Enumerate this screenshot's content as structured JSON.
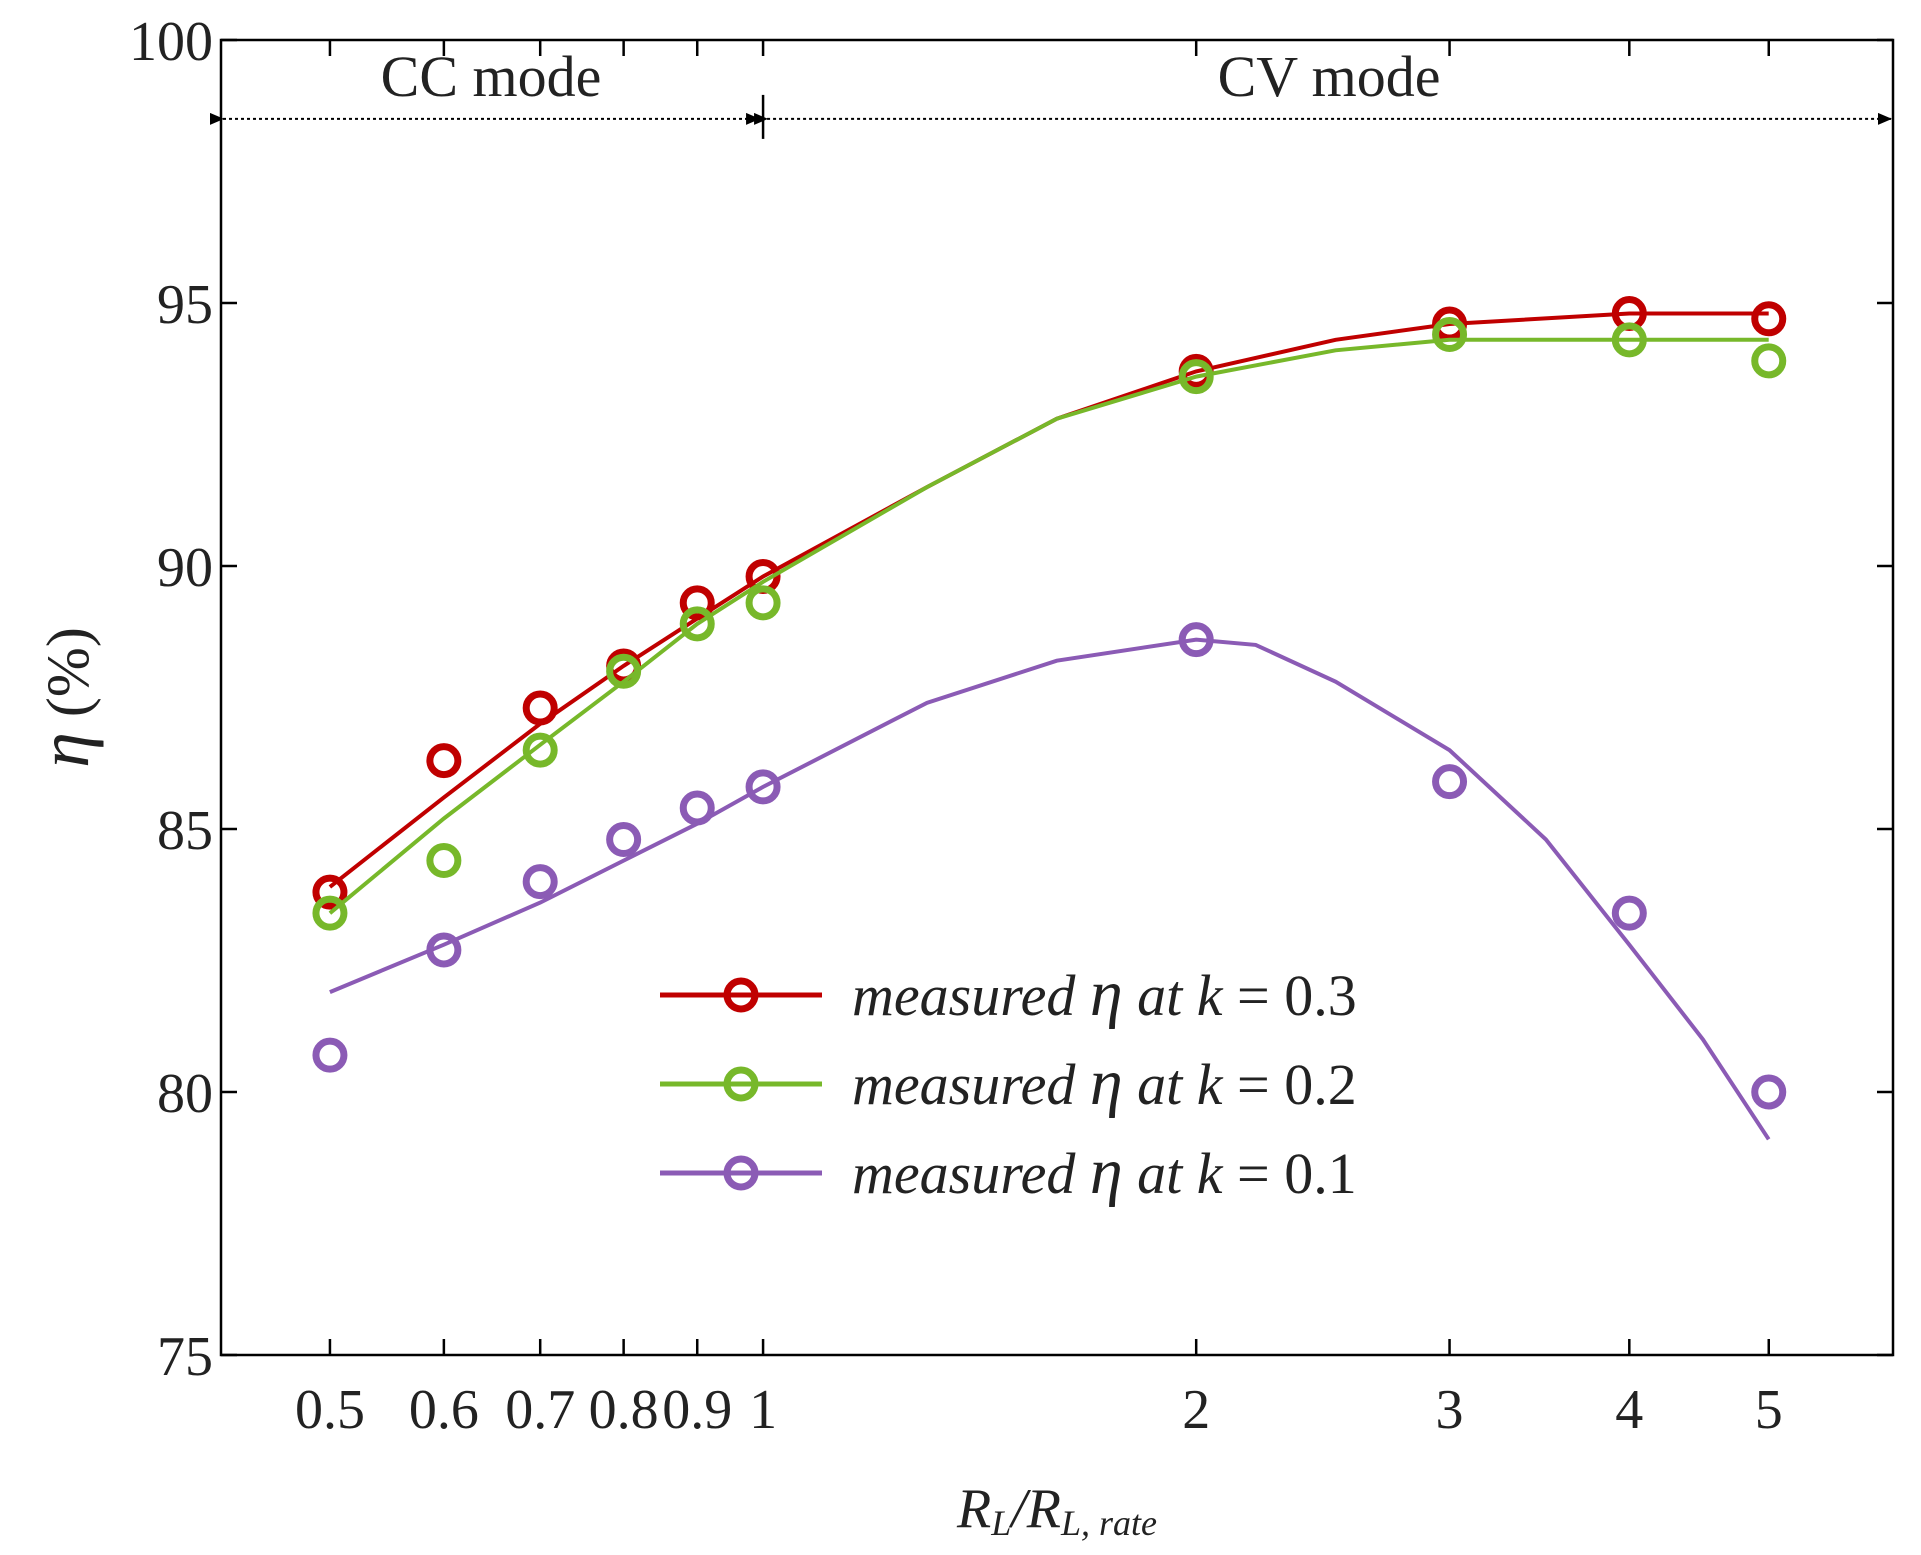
{
  "chart_data": {
    "type": "line",
    "x_scale": "log",
    "xlabel": {
      "main": "R",
      "sub1": "L",
      "mid": "/R",
      "sub2": "L, rate"
    },
    "ylabel": {
      "symbol": "η",
      "unit": "(%)"
    },
    "xlim": [
      0.42,
      6.1
    ],
    "ylim": [
      75,
      100
    ],
    "x_ticks": [
      0.5,
      0.6,
      0.7,
      0.8,
      0.9,
      1,
      2,
      3,
      4,
      5
    ],
    "x_tick_labels": [
      "0.5",
      "0.6",
      "0.7",
      "0.8",
      "0.9",
      "1",
      "2",
      "3",
      "4",
      "5"
    ],
    "y_ticks": [
      75,
      80,
      85,
      90,
      95,
      100
    ],
    "y_tick_labels": [
      "75",
      "80",
      "85",
      "90",
      "95",
      "100"
    ],
    "grid": false,
    "legend_position": "lower-center",
    "annotations": [
      {
        "text": "CC mode",
        "x_from": 0.42,
        "x_to": 1,
        "y": 98.5
      },
      {
        "text": "CV mode",
        "x_from": 1,
        "x_to": 6.1,
        "y": 98.5
      }
    ],
    "series": [
      {
        "name": "measured η at k = 0.3",
        "legend_prefix": "measured ",
        "legend_symbol": "η",
        "legend_mid": " at ",
        "legend_var": "k",
        "legend_value": " = 0.3",
        "color": "#c00000",
        "x": [
          0.5,
          0.6,
          0.7,
          0.8,
          0.9,
          1,
          2,
          3,
          4,
          5
        ],
        "values": [
          83.8,
          86.3,
          87.3,
          88.1,
          89.3,
          89.8,
          93.7,
          94.6,
          94.8,
          94.7
        ],
        "fit": [
          [
            0.5,
            83.9
          ],
          [
            0.6,
            85.6
          ],
          [
            0.7,
            87.0
          ],
          [
            0.8,
            88.1
          ],
          [
            0.9,
            89.0
          ],
          [
            1,
            89.8
          ],
          [
            1.3,
            91.5
          ],
          [
            1.6,
            92.8
          ],
          [
            2,
            93.7
          ],
          [
            2.5,
            94.3
          ],
          [
            3,
            94.6
          ],
          [
            4,
            94.8
          ],
          [
            5,
            94.8
          ]
        ]
      },
      {
        "name": "measured η at k = 0.2",
        "legend_prefix": "measured ",
        "legend_symbol": "η",
        "legend_mid": " at ",
        "legend_var": "k",
        "legend_value": " = 0.2",
        "color": "#77b82a",
        "x": [
          0.5,
          0.6,
          0.7,
          0.8,
          0.9,
          1,
          2,
          3,
          4,
          5
        ],
        "values": [
          83.4,
          84.4,
          86.5,
          88.0,
          88.9,
          89.3,
          93.6,
          94.4,
          94.3,
          93.9
        ],
        "fit": [
          [
            0.5,
            83.4
          ],
          [
            0.6,
            85.2
          ],
          [
            0.7,
            86.6
          ],
          [
            0.8,
            87.8
          ],
          [
            0.9,
            88.9
          ],
          [
            1,
            89.7
          ],
          [
            1.3,
            91.5
          ],
          [
            1.6,
            92.8
          ],
          [
            2,
            93.6
          ],
          [
            2.5,
            94.1
          ],
          [
            3,
            94.3
          ],
          [
            4,
            94.3
          ],
          [
            5,
            94.3
          ]
        ]
      },
      {
        "name": "measured η at k = 0.1",
        "legend_prefix": "measured ",
        "legend_symbol": "η",
        "legend_mid": " at ",
        "legend_var": "k",
        "legend_value": " = 0.1",
        "color": "#8b5bb5",
        "x": [
          0.5,
          0.6,
          0.7,
          0.8,
          0.9,
          1,
          2,
          3,
          4,
          5
        ],
        "values": [
          80.7,
          82.7,
          84.0,
          84.8,
          85.4,
          85.8,
          88.6,
          85.9,
          83.4,
          80.0
        ],
        "fit": [
          [
            0.5,
            81.9
          ],
          [
            0.6,
            82.8
          ],
          [
            0.7,
            83.6
          ],
          [
            0.8,
            84.4
          ],
          [
            0.9,
            85.1
          ],
          [
            1,
            85.8
          ],
          [
            1.3,
            87.4
          ],
          [
            1.6,
            88.2
          ],
          [
            2,
            88.6
          ],
          [
            2.2,
            88.5
          ],
          [
            2.5,
            87.8
          ],
          [
            3,
            86.5
          ],
          [
            3.5,
            84.8
          ],
          [
            4,
            82.8
          ],
          [
            4.5,
            81.0
          ],
          [
            5,
            79.1
          ]
        ]
      }
    ]
  }
}
